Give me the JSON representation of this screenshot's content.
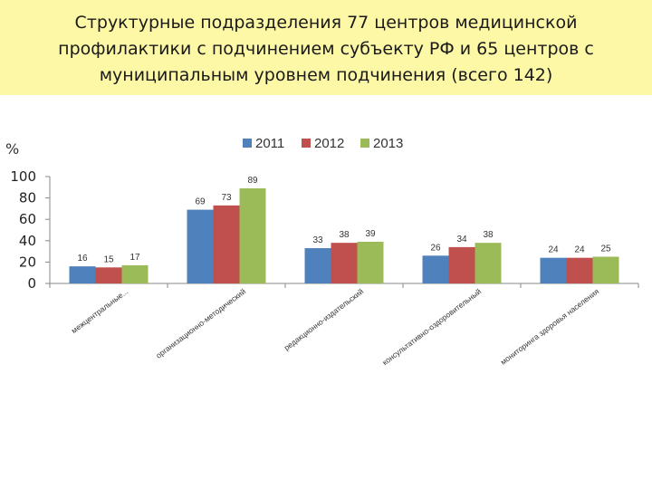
{
  "header": {
    "title": "Структурные подразделения 77 центров медицинской профилактики с подчинением субъекту РФ и 65 центров с муниципальным уровнем подчинения (всего 142)"
  },
  "chart_data": {
    "type": "bar",
    "unit_label": "%",
    "categories": [
      "межцентральные...",
      "организационно-методический",
      "редакционно-издательский",
      "консультативно-оздоровительный",
      "мониторинга здоровья населения"
    ],
    "series": [
      {
        "name": "2011",
        "color": "#4f81bd",
        "values": [
          16,
          69,
          33,
          26,
          24
        ]
      },
      {
        "name": "2012",
        "color": "#c0504d",
        "values": [
          15,
          73,
          38,
          34,
          24
        ]
      },
      {
        "name": "2013",
        "color": "#9bbb59",
        "values": [
          17,
          89,
          39,
          38,
          25
        ]
      }
    ],
    "ylim": [
      0,
      100
    ],
    "yticks": [
      0,
      20,
      40,
      60,
      80,
      100
    ],
    "legend_position": "top",
    "grid": false
  }
}
